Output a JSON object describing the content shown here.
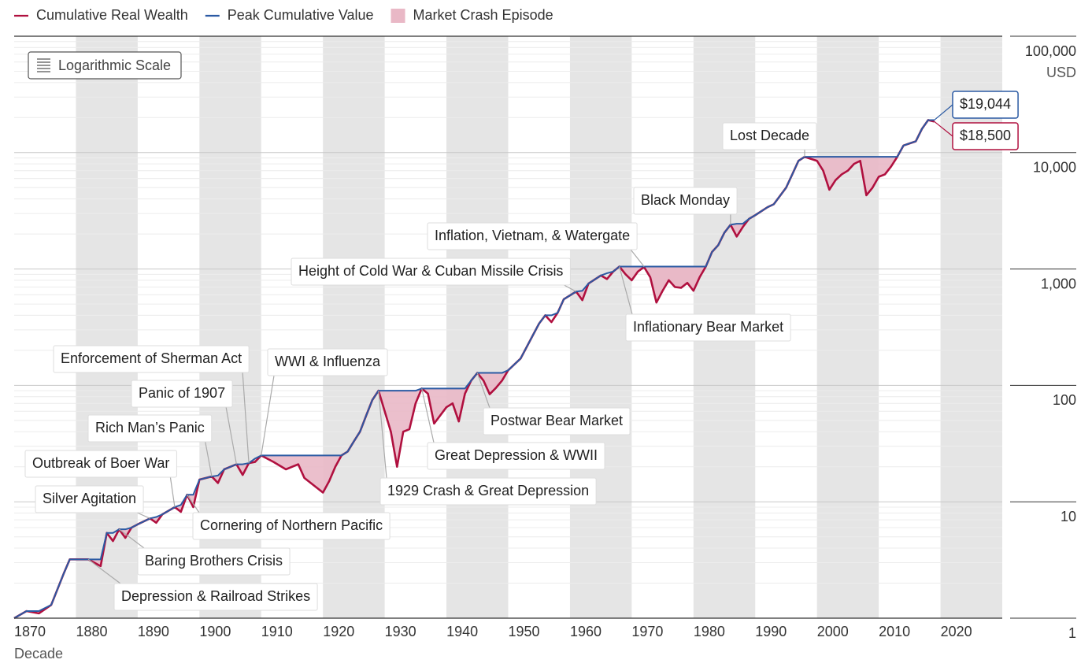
{
  "chart_data": {
    "type": "line",
    "log_scale": true,
    "grid": true,
    "scale_button": "Logarithmic Scale",
    "ylabel": "USD",
    "xlabel": "Decade",
    "xlim": [
      1870,
      2030
    ],
    "xticks": [
      1870,
      1880,
      1890,
      1900,
      1910,
      1920,
      1930,
      1940,
      1950,
      1960,
      1970,
      1980,
      1990,
      2000,
      2010,
      2020
    ],
    "ylim": [
      1,
      100000
    ],
    "yticks": [
      1,
      10,
      100,
      {
        "value": 1000,
        "label": "1,000"
      },
      {
        "value": 10000,
        "label": "10,000"
      },
      {
        "value": 100000,
        "label": "100,000"
      }
    ],
    "x": [
      1870,
      1872,
      1874,
      1876,
      1878,
      1879,
      1882,
      1884,
      1885,
      1886,
      1887,
      1888,
      1889,
      1890,
      1892,
      1893,
      1894,
      1896,
      1897,
      1898,
      1899,
      1900,
      1902,
      1903,
      1904,
      1906,
      1907,
      1908,
      1909,
      1910,
      1912,
      1914,
      1916,
      1917,
      1920,
      1921,
      1922,
      1923,
      1924,
      1925,
      1926,
      1927,
      1928,
      1929,
      1930,
      1931,
      1932,
      1933,
      1934,
      1935,
      1936,
      1937,
      1938,
      1940,
      1941,
      1942,
      1943,
      1944,
      1945,
      1946,
      1947,
      1948,
      1949,
      1950,
      1952,
      1954,
      1955,
      1956,
      1957,
      1958,
      1959,
      1961,
      1962,
      1963,
      1965,
      1966,
      1967,
      1968,
      1969,
      1970,
      1971,
      1972,
      1973,
      1974,
      1975,
      1976,
      1977,
      1978,
      1979,
      1980,
      1981,
      1982,
      1983,
      1984,
      1985,
      1986,
      1987,
      1988,
      1989,
      1990,
      1992,
      1993,
      1995,
      1996,
      1997,
      1998,
      2000,
      2001,
      2002,
      2003,
      2004,
      2005,
      2006,
      2007,
      2008,
      2009,
      2010,
      2011,
      2012,
      2013,
      2014,
      2015,
      2016,
      2017,
      2018,
      2019
    ],
    "series": [
      {
        "name": "Cumulative Real Wealth",
        "color": "#b0103f",
        "values": [
          1,
          1.15,
          1.1,
          1.3,
          2.4,
          3.2,
          3.2,
          2.8,
          5.4,
          4.6,
          5.8,
          4.9,
          6.0,
          6.4,
          7.2,
          6.6,
          7.8,
          9.0,
          8.2,
          11.5,
          9.0,
          15.5,
          16.5,
          14.5,
          19,
          21,
          17,
          21.5,
          22,
          25,
          22,
          19,
          21,
          16,
          12,
          15,
          20,
          25,
          27,
          33,
          40,
          55,
          75,
          90,
          60,
          40,
          20,
          40,
          42,
          70,
          94,
          85,
          47,
          65,
          70,
          49,
          85,
          110,
          128,
          110,
          84,
          95,
          110,
          135,
          170,
          270,
          340,
          400,
          350,
          420,
          550,
          640,
          540,
          750,
          880,
          820,
          950,
          1050,
          900,
          800,
          950,
          1040,
          850,
          515,
          650,
          800,
          700,
          690,
          760,
          650,
          850,
          1050,
          1400,
          1600,
          2050,
          2400,
          1900,
          2300,
          2700,
          2900,
          3400,
          3600,
          5000,
          6500,
          8500,
          9200,
          8500,
          7000,
          4800,
          5800,
          6500,
          7000,
          8000,
          8500,
          4300,
          5000,
          6200,
          6500,
          7600,
          9200,
          11500,
          12000,
          12500,
          16000,
          19044,
          18500
        ],
        "value_labels": [
          null,
          null,
          null,
          null,
          null,
          null,
          null,
          null,
          null,
          null,
          null,
          null,
          null,
          null,
          null,
          null,
          null,
          null,
          null,
          null,
          null,
          null,
          null,
          null,
          null,
          null,
          null,
          null,
          null,
          null,
          null,
          null,
          null,
          null,
          null,
          null,
          null,
          null,
          null,
          null,
          null,
          null,
          null,
          null,
          null,
          null,
          null,
          null,
          null,
          null,
          null,
          null,
          null,
          null,
          null,
          null,
          null,
          null,
          null,
          null,
          null,
          null,
          null,
          null,
          null,
          null,
          null,
          null,
          null,
          null,
          null,
          null,
          null,
          null,
          null,
          null,
          null,
          null,
          null,
          null,
          null,
          null,
          null,
          null,
          null,
          null,
          null,
          null,
          null,
          null,
          null,
          null,
          null,
          null,
          null,
          null,
          null,
          null,
          null,
          null,
          null,
          null,
          null,
          null,
          null,
          null,
          null,
          null,
          null,
          null,
          null,
          null,
          null,
          null,
          null,
          null,
          null,
          null,
          null,
          null,
          null,
          null,
          null,
          null,
          null,
          "$18,500"
        ]
      },
      {
        "name": "Peak Cumulative Value",
        "color": "#2b5aa3",
        "values": [
          1,
          1.15,
          1.15,
          1.3,
          2.4,
          3.2,
          3.2,
          3.2,
          5.4,
          5.4,
          5.8,
          5.8,
          6.0,
          6.4,
          7.2,
          7.4,
          7.8,
          9.0,
          9.4,
          11.5,
          11.5,
          15.5,
          16.5,
          16.8,
          19,
          21,
          21,
          21.5,
          23.5,
          25,
          25,
          25,
          25,
          25,
          25,
          25,
          25,
          25,
          27,
          33,
          40,
          55,
          75,
          90,
          90,
          90,
          90,
          90,
          90,
          90,
          94,
          94,
          94,
          94,
          94,
          94,
          94,
          110,
          128,
          128,
          128,
          128,
          128,
          135,
          170,
          270,
          340,
          400,
          400,
          420,
          550,
          640,
          650,
          750,
          880,
          920,
          950,
          1050,
          1050,
          1050,
          1050,
          1050,
          1050,
          1050,
          1050,
          1050,
          1050,
          1050,
          1050,
          1050,
          1050,
          1050,
          1400,
          1600,
          2050,
          2400,
          2450,
          2450,
          2700,
          2900,
          3400,
          3600,
          5000,
          6500,
          8500,
          9200,
          9200,
          9200,
          9200,
          9200,
          9200,
          9200,
          9200,
          9200,
          9200,
          9200,
          9200,
          9200,
          9200,
          9200,
          11500,
          12000,
          12500,
          16000,
          19044,
          19044
        ],
        "value_labels": [
          null,
          null,
          null,
          null,
          null,
          null,
          null,
          null,
          null,
          null,
          null,
          null,
          null,
          null,
          null,
          null,
          null,
          null,
          null,
          null,
          null,
          null,
          null,
          null,
          null,
          null,
          null,
          null,
          null,
          null,
          null,
          null,
          null,
          null,
          null,
          null,
          null,
          null,
          null,
          null,
          null,
          null,
          null,
          null,
          null,
          null,
          null,
          null,
          null,
          null,
          null,
          null,
          null,
          null,
          null,
          null,
          null,
          null,
          null,
          null,
          null,
          null,
          null,
          null,
          null,
          null,
          null,
          null,
          null,
          null,
          null,
          null,
          null,
          null,
          null,
          null,
          null,
          null,
          null,
          null,
          null,
          null,
          null,
          null,
          null,
          null,
          null,
          null,
          null,
          null,
          null,
          null,
          null,
          null,
          null,
          null,
          null,
          null,
          null,
          null,
          null,
          null,
          null,
          null,
          null,
          null,
          null,
          null,
          null,
          null,
          null,
          null,
          null,
          null,
          null,
          null,
          null,
          null,
          null,
          null,
          null,
          null,
          null,
          null,
          null,
          "$19,044"
        ]
      }
    ],
    "episode_legend": "Market Crash Episode",
    "episode_color": "#e9b8c6",
    "band_color": "#e5e5e5",
    "episodes": [
      {
        "label": "Depression & Railroad Strikes",
        "start": 1882,
        "end": 1885
      },
      {
        "label": "Baring Brothers Crisis",
        "start": 1887,
        "end": 1889
      },
      {
        "label": "Silver Agitation",
        "start": 1892,
        "end": 1894
      },
      {
        "label": "Outbreak of Boer War",
        "start": 1896,
        "end": 1898
      },
      {
        "label": "Cornering of Northern Pacific",
        "start": 1898,
        "end": 1900
      },
      {
        "label": "Rich Man’s Panic",
        "start": 1902,
        "end": 1904
      },
      {
        "label": "Panic of 1907",
        "start": 1906,
        "end": 1908
      },
      {
        "label": "Enforcement of Sherman Act",
        "start": 1908,
        "end": 1910
      },
      {
        "label": "WWI & Influenza",
        "start": 1910,
        "end": 1923
      },
      {
        "label": "1929 Crash & Great Depression",
        "start": 1929,
        "end": 1936
      },
      {
        "label": "Great Depression & WWII",
        "start": 1936,
        "end": 1944
      },
      {
        "label": "Postwar Bear Market",
        "start": 1945,
        "end": 1950
      },
      {
        "label": "Height of Cold War & Cuban Missile Crisis",
        "start": 1961,
        "end": 1963
      },
      {
        "label": "Inflation, Vietnam, & Watergate",
        "start": 1972,
        "end": 1982
      },
      {
        "label": "Inflationary Bear Market",
        "start": 1968,
        "end": 1982
      },
      {
        "label": "Black Monday",
        "start": 1986,
        "end": 1989
      },
      {
        "label": "Lost Decade",
        "start": 1998,
        "end": 2013
      }
    ]
  }
}
